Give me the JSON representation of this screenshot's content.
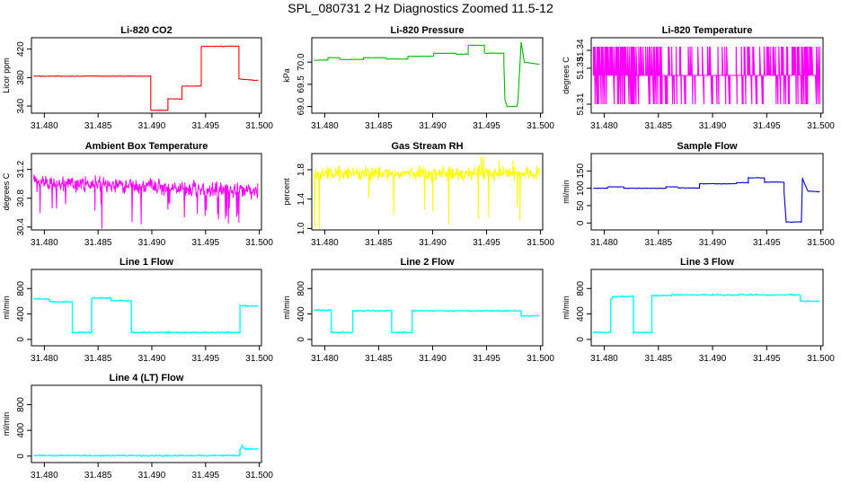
{
  "figure": {
    "title": "SPL_080731  2 Hz Diagnostics Zoomed 11.5-12"
  },
  "chart_data": [
    {
      "type": "line",
      "title": "Li-820 CO2",
      "ylabel": "Licor ppm",
      "xlim": [
        31.4788,
        31.5002
      ],
      "ylim": [
        330,
        436
      ],
      "xticks": [
        "31.480",
        "31.485",
        "31.490",
        "31.495",
        "31.500"
      ],
      "yticks": [
        "340",
        "380",
        "420"
      ],
      "color": "#ff0000",
      "series": [
        {
          "name": "CO2",
          "x": [
            31.479,
            31.4899,
            31.4899,
            31.4915,
            31.4915,
            31.4928,
            31.4928,
            31.4946,
            31.4946,
            31.4981,
            31.4981,
            31.4999
          ],
          "values": [
            382,
            382,
            334,
            334,
            350,
            350,
            368,
            368,
            424,
            424,
            378,
            376
          ]
        }
      ]
    },
    {
      "type": "line",
      "title": "Li-820 Pressure",
      "ylabel": "kPa",
      "xlim": [
        31.4788,
        31.5002
      ],
      "ylim": [
        68.85,
        70.55
      ],
      "xticks": [
        "31.480",
        "31.485",
        "31.490",
        "31.495",
        "31.500"
      ],
      "yticks": [
        "69.0",
        "69.5",
        "70.0"
      ],
      "color": "#00bb00",
      "series": [
        {
          "name": "Pressure",
          "x": [
            31.479,
            31.4803,
            31.4803,
            31.4814,
            31.4814,
            31.4836,
            31.4836,
            31.4857,
            31.4857,
            31.4877,
            31.4877,
            31.4901,
            31.4901,
            31.4922,
            31.4922,
            31.4933,
            31.4933,
            31.4948,
            31.4948,
            31.4966,
            31.4966,
            31.4967,
            31.4969,
            31.4978,
            31.4979,
            31.4982,
            31.4985,
            31.4999
          ],
          "values": [
            70.04,
            70.05,
            70.1,
            70.1,
            70.06,
            70.06,
            70.1,
            70.1,
            70.07,
            70.07,
            70.13,
            70.13,
            70.2,
            70.2,
            70.18,
            70.18,
            70.38,
            70.38,
            70.2,
            70.2,
            69.95,
            69.15,
            69.0,
            69.0,
            69.1,
            70.45,
            70.0,
            69.95
          ]
        }
      ]
    },
    {
      "type": "line",
      "title": "Li-820 Temperature",
      "ylabel": "degrees C",
      "xlim": [
        31.4788,
        31.5002
      ],
      "ylim": [
        51.305,
        51.347
      ],
      "xticks": [
        "31.480",
        "31.485",
        "31.490",
        "31.495",
        "31.500"
      ],
      "yticks": [
        "51.31",
        "51.33",
        "51.34"
      ],
      "color": "#ff00ff",
      "series": [
        {
          "name": "Temperature",
          "x": [],
          "values": []
        }
      ]
    },
    {
      "type": "line",
      "title": "Ambient Box Temperature",
      "ylabel": "degrees C",
      "xlim": [
        31.4788,
        31.5002
      ],
      "ylim": [
        30.36,
        31.42
      ],
      "xticks": [
        "31.480",
        "31.485",
        "31.490",
        "31.495",
        "31.500"
      ],
      "yticks": [
        "30.4",
        "30.8",
        "31.2"
      ],
      "color": "#ff00ff",
      "series": [
        {
          "name": "Ambient",
          "x": [
            31.479,
            31.4999
          ],
          "values": [
            31.02,
            30.9
          ]
        }
      ]
    },
    {
      "type": "line",
      "title": "Gas Stream RH",
      "ylabel": "percent",
      "xlim": [
        31.4788,
        31.5002
      ],
      "ylim": [
        0.98,
        2.02
      ],
      "xticks": [
        "31.480",
        "31.485",
        "31.490",
        "31.495",
        "31.500"
      ],
      "yticks": [
        "1.0",
        "1.4",
        "1.8"
      ],
      "color": "#ffff00",
      "series": [
        {
          "name": "RH",
          "x": [
            31.479,
            31.4999
          ],
          "values": [
            1.75,
            1.75
          ]
        }
      ]
    },
    {
      "type": "line",
      "title": "Sample Flow",
      "ylabel": "ml/min",
      "xlim": [
        31.4788,
        31.5002
      ],
      "ylim": [
        -20,
        200
      ],
      "xticks": [
        "31.480",
        "31.485",
        "31.490",
        "31.495",
        "31.500"
      ],
      "yticks": [
        "0",
        "50",
        "100",
        "150"
      ],
      "color": "#0000cc",
      "series": [
        {
          "name": "Sample",
          "x": [
            31.479,
            31.4803,
            31.4803,
            31.4818,
            31.4818,
            31.4857,
            31.4857,
            31.4868,
            31.4868,
            31.4888,
            31.4888,
            31.4922,
            31.4922,
            31.4933,
            31.4933,
            31.4948,
            31.4948,
            31.4966,
            31.4966,
            31.4968,
            31.4982,
            31.4983,
            31.4984,
            31.4988,
            31.4999
          ],
          "values": [
            100,
            100,
            104,
            104,
            100,
            100,
            104,
            104,
            101,
            101,
            113,
            113,
            116,
            116,
            130,
            130,
            118,
            118,
            90,
            3,
            3,
            130,
            120,
            92,
            90
          ]
        }
      ]
    },
    {
      "type": "line",
      "title": "Line 1 Flow",
      "ylabel": "ml/min",
      "xlim": [
        31.4788,
        31.5002
      ],
      "ylim": [
        -100,
        1100
      ],
      "xticks": [
        "31.480",
        "31.485",
        "31.490",
        "31.495",
        "31.500"
      ],
      "yticks": [
        "0",
        "400",
        "800"
      ],
      "color": "#00ffff",
      "series": [
        {
          "name": "Line1",
          "x": [
            31.479,
            31.4805,
            31.4805,
            31.4826,
            31.4826,
            31.4844,
            31.4844,
            31.4862,
            31.4862,
            31.4881,
            31.4881,
            31.4982,
            31.4982,
            31.4999
          ],
          "values": [
            640,
            630,
            590,
            590,
            110,
            110,
            650,
            650,
            610,
            610,
            110,
            110,
            530,
            520
          ]
        }
      ]
    },
    {
      "type": "line",
      "title": "Line 2 Flow",
      "ylabel": "ml/min",
      "xlim": [
        31.4788,
        31.5002
      ],
      "ylim": [
        -100,
        1100
      ],
      "xticks": [
        "31.480",
        "31.485",
        "31.490",
        "31.495",
        "31.500"
      ],
      "yticks": [
        "0",
        "400",
        "800"
      ],
      "color": "#00ffff",
      "series": [
        {
          "name": "Line2",
          "x": [
            31.479,
            31.4806,
            31.4806,
            31.4826,
            31.4826,
            31.4862,
            31.4862,
            31.4881,
            31.4881,
            31.4982,
            31.4982,
            31.4999
          ],
          "values": [
            460,
            460,
            110,
            110,
            450,
            450,
            110,
            110,
            450,
            450,
            370,
            370
          ]
        }
      ]
    },
    {
      "type": "line",
      "title": "Line 3 Flow",
      "ylabel": "ml/min",
      "xlim": [
        31.4788,
        31.5002
      ],
      "ylim": [
        -100,
        1100
      ],
      "xticks": [
        "31.480",
        "31.485",
        "31.490",
        "31.495",
        "31.500"
      ],
      "yticks": [
        "0",
        "400",
        "800"
      ],
      "color": "#00ffff",
      "series": [
        {
          "name": "Line3",
          "x": [
            31.479,
            31.4806,
            31.4806,
            31.4808,
            31.4827,
            31.4827,
            31.4844,
            31.4844,
            31.4862,
            31.4862,
            31.4981,
            31.4981,
            31.4999
          ],
          "values": [
            110,
            110,
            620,
            670,
            680,
            110,
            110,
            690,
            690,
            700,
            700,
            600,
            600
          ]
        }
      ]
    },
    {
      "type": "line",
      "title": "Line 4 (LT) Flow",
      "ylabel": "ml/min",
      "xlim": [
        31.4788,
        31.5002
      ],
      "ylim": [
        -100,
        1100
      ],
      "xticks": [
        "31.480",
        "31.485",
        "31.490",
        "31.495",
        "31.500"
      ],
      "yticks": [
        "0",
        "400",
        "800"
      ],
      "color": "#00ffff",
      "series": [
        {
          "name": "Line4",
          "x": [
            31.479,
            31.4982,
            31.4982,
            31.4984,
            31.4987,
            31.4999
          ],
          "values": [
            8,
            8,
            100,
            160,
            110,
            110
          ]
        }
      ]
    }
  ]
}
